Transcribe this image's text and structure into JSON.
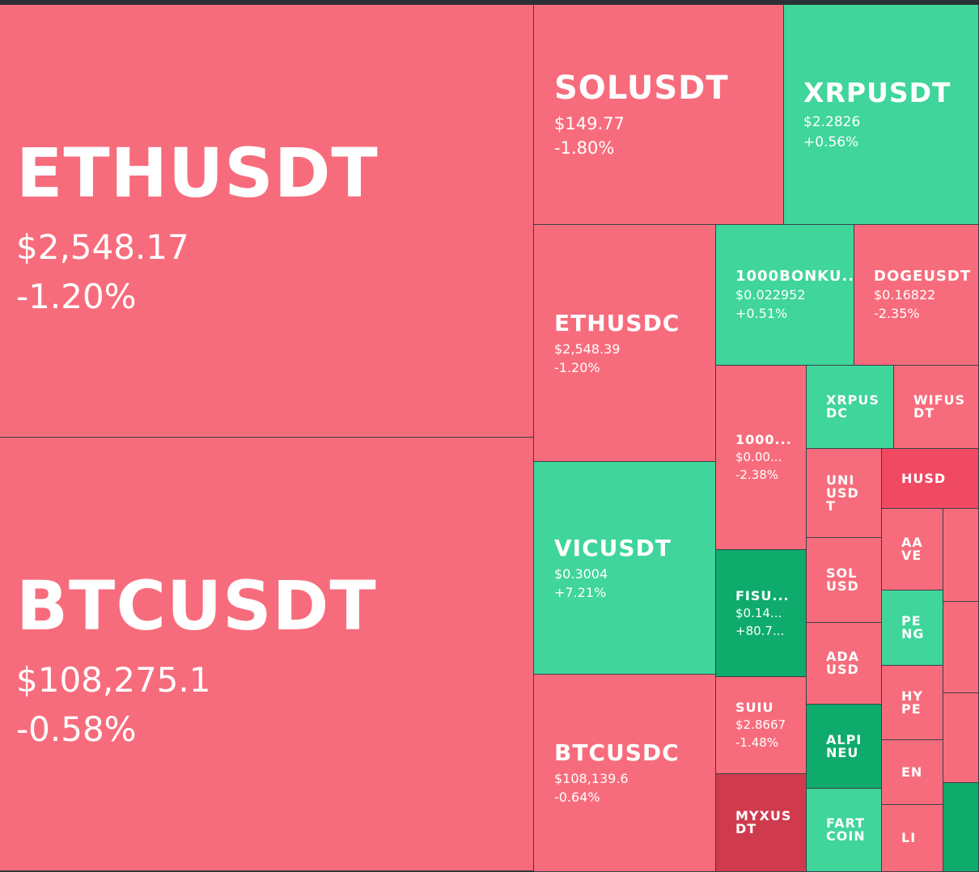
{
  "colors": {
    "negative": "#f76c7c",
    "negative_strong": "#f04a63",
    "negative_dark": "#cf3b4d",
    "positive": "#3fd59b",
    "positive_strong": "#0eab6c",
    "border": "#3a3f47",
    "background": "#2b2f36"
  },
  "chart_data": {
    "type": "treemap",
    "title": "",
    "items": [
      {
        "symbol": "ETHUSDT",
        "price": "$2,548.17",
        "change": "-1.20%",
        "change_value": -1.2
      },
      {
        "symbol": "BTCUSDT",
        "price": "$108,275.1",
        "change": "-0.58%",
        "change_value": -0.58
      },
      {
        "symbol": "SOLUSDT",
        "price": "$149.77",
        "change": "-1.80%",
        "change_value": -1.8
      },
      {
        "symbol": "XRPUSDT",
        "price": "$2.2826",
        "change": "+0.56%",
        "change_value": 0.56
      },
      {
        "symbol": "ETHUSDC",
        "price": "$2,548.39",
        "change": "-1.20%",
        "change_value": -1.2
      },
      {
        "symbol": "1000BONKU...",
        "price": "$0.022952",
        "change": "+0.51%",
        "change_value": 0.51
      },
      {
        "symbol": "DOGEUSDT",
        "price": "$0.16822",
        "change": "-2.35%",
        "change_value": -2.35
      },
      {
        "symbol": "1000...",
        "price": "$0.00...",
        "change": "-2.38%",
        "change_value": -2.38
      },
      {
        "symbol": "XRPUS\nDC",
        "price": "",
        "change": "",
        "change_value": 0.5
      },
      {
        "symbol": "WIFUS\nDT",
        "price": "",
        "change": "",
        "change_value": -1
      },
      {
        "symbol": "VICUSDT",
        "price": "$0.3004",
        "change": "+7.21%",
        "change_value": 7.21
      },
      {
        "symbol": "UNI\nUSD\nT",
        "price": "",
        "change": "",
        "change_value": -1
      },
      {
        "symbol": "HUSD",
        "price": "",
        "change": "",
        "change_value": -5
      },
      {
        "symbol": "SOL\nUSD",
        "price": "",
        "change": "",
        "change_value": -1
      },
      {
        "symbol": "AA\nVE",
        "price": "",
        "change": "",
        "change_value": -1
      },
      {
        "symbol": "",
        "price": "",
        "change": "",
        "change_value": -1
      },
      {
        "symbol": "FISU...",
        "price": "$0.14...",
        "change": "+80.7...",
        "change_value": 80.7
      },
      {
        "symbol": "PE\nNG",
        "price": "",
        "change": "",
        "change_value": 1
      },
      {
        "symbol": "",
        "price": "",
        "change": "",
        "change_value": -1
      },
      {
        "symbol": "ADA\nUSD",
        "price": "",
        "change": "",
        "change_value": -1
      },
      {
        "symbol": "HY\nPE",
        "price": "",
        "change": "",
        "change_value": -1
      },
      {
        "symbol": "",
        "price": "",
        "change": "",
        "change_value": -1
      },
      {
        "symbol": "SUIU",
        "price": "$2.8667",
        "change": "-1.48%",
        "change_value": -1.48
      },
      {
        "symbol": "ALPI\nNEU",
        "price": "",
        "change": "",
        "change_value": 5
      },
      {
        "symbol": "EN",
        "price": "",
        "change": "",
        "change_value": -1
      },
      {
        "symbol": "",
        "price": "",
        "change": "",
        "change_value": -1
      },
      {
        "symbol": "BTCUSDC",
        "price": "$108,139.6",
        "change": "-0.64%",
        "change_value": -0.64
      },
      {
        "symbol": "MYXUS\nDT",
        "price": "",
        "change": "",
        "change_value": -6
      },
      {
        "symbol": "FART\nCOIN",
        "price": "",
        "change": "",
        "change_value": 1
      },
      {
        "symbol": "LI",
        "price": "",
        "change": "",
        "change_value": -1
      },
      {
        "symbol": "",
        "price": "",
        "change": "",
        "change_value": 6
      }
    ]
  }
}
